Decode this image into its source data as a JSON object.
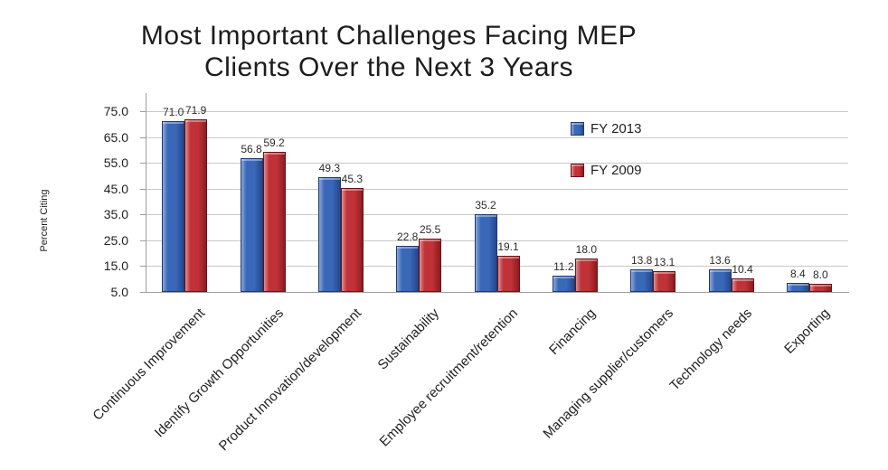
{
  "chart_data": {
    "type": "bar",
    "title": "Most Important Challenges Facing MEP Clients Over the Next 3 Years",
    "title_lines": [
      "Most Important Challenges Facing MEP",
      "Clients Over the Next 3 Years"
    ],
    "ylabel": "Percent Citing",
    "xlabel": "",
    "ylim": [
      5,
      75
    ],
    "ytick_step": 10,
    "ytick_labels": [
      "75.0",
      "65.0",
      "55.0",
      "45.0",
      "35.0",
      "25.0",
      "15.0",
      "5.0"
    ],
    "grid": true,
    "legend_position": "inside-upper-right",
    "categories": [
      "Continuous Improvement",
      "Identify Growth Opportunities",
      "Product Innovation/development",
      "Sustainability",
      "Employee recruitment/retention",
      "Financing",
      "Managing supplier/customers",
      "Technology needs",
      "Exporting"
    ],
    "series": [
      {
        "name": "FY 2013",
        "color": "#3A68B8",
        "color_light": "#8BA8DC",
        "color_dark": "#25488E",
        "border": "#1C3A6E",
        "values": [
          71.0,
          56.8,
          49.3,
          22.8,
          35.2,
          11.2,
          13.8,
          13.6,
          8.4
        ],
        "labels": [
          "71.0",
          "56.8",
          "49.3",
          "22.8",
          "35.2",
          "11.2",
          "13.8",
          "13.6",
          "8.4"
        ]
      },
      {
        "name": "FY 2009",
        "color": "#C03237",
        "color_light": "#DE8E91",
        "color_dark": "#8B1B20",
        "border": "#6B1216",
        "values": [
          71.9,
          59.2,
          45.3,
          25.5,
          19.1,
          18.0,
          13.1,
          10.4,
          8.0
        ],
        "labels": [
          "71.9",
          "59.2",
          "45.3",
          "25.5",
          "19.1",
          "18.0",
          "13.1",
          "10.4",
          "8.0"
        ]
      }
    ],
    "colors": {
      "grid": "#C9C9C9",
      "axis": "#9E9E9E",
      "text": "#1F1F1F",
      "background": "#FFFFFF"
    }
  }
}
